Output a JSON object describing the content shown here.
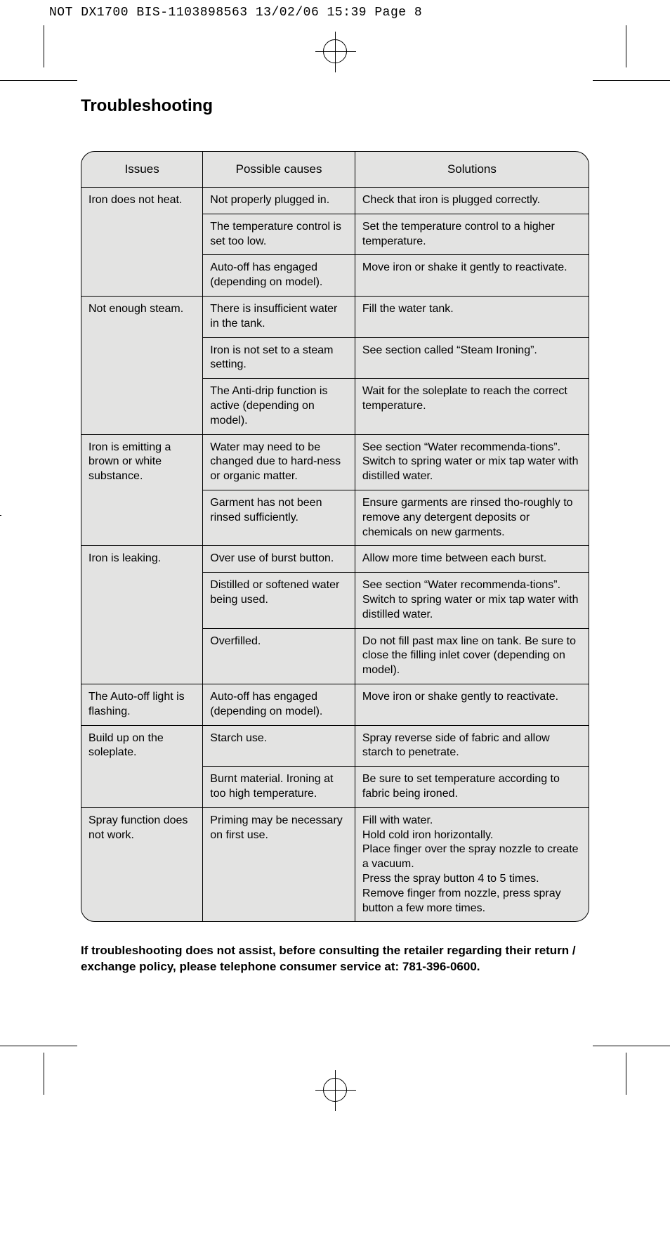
{
  "header_line": "NOT DX1700 BIS-1103898563  13/02/06  15:39  Page 8",
  "page_title": "Troubleshooting",
  "table": {
    "headers": [
      "Issues",
      "Possible causes",
      "Solutions"
    ],
    "rows": [
      {
        "issue": "Iron does not heat.",
        "issue_rowspan": 3,
        "cause": "Not properly plugged in.",
        "solution": "Check that iron is plugged correctly."
      },
      {
        "cause": "The temperature control is set too low.",
        "solution": "Set the temperature control to a higher temperature."
      },
      {
        "cause": "Auto-off has engaged (depending on model).",
        "solution": "Move iron or shake it gently to reactivate."
      },
      {
        "issue": "Not enough steam.",
        "issue_rowspan": 3,
        "cause": "There is insufficient water in the tank.",
        "solution": "Fill the water tank."
      },
      {
        "cause": "Iron is not set to a steam setting.",
        "solution": "See section called “Steam Ironing”."
      },
      {
        "cause": "The Anti-drip function is active (depending on model).",
        "cause_small": true,
        "solution": "Wait for the soleplate to reach the correct temperature."
      },
      {
        "issue": "Iron is emitting a brown or white substance.",
        "issue_rowspan": 2,
        "cause": "Water may need to be changed due to hard-ness or organic matter.",
        "solution": "See section “Water recommenda-tions”. Switch to spring water or mix tap water with distilled water."
      },
      {
        "cause": "Garment has not been rinsed sufficiently.",
        "solution": "Ensure garments are rinsed tho-roughly to remove any detergent deposits or chemicals on new garments."
      },
      {
        "issue": "Iron is leaking.",
        "issue_rowspan": 3,
        "cause": "Over use of burst button.",
        "solution": "Allow more time between each burst."
      },
      {
        "cause": "Distilled or softened water being used.",
        "solution": "See section “Water recommenda-tions”. Switch to spring water or mix tap water with distilled water."
      },
      {
        "cause": "Overfilled.",
        "solution": "Do not fill past max line on tank. Be sure to close the filling inlet cover (depending on model)."
      },
      {
        "issue": "The Auto-off light is flashing.",
        "issue_rowspan": 1,
        "cause": "Auto-off has engaged (depending on model).",
        "solution": "Move iron or shake gently to reactivate."
      },
      {
        "issue": "Build up on the soleplate.",
        "issue_rowspan": 2,
        "cause": "Starch use.",
        "solution": "Spray reverse side of fabric and allow starch to penetrate."
      },
      {
        "cause": "Burnt material. Ironing at too high temperature.",
        "solution": "Be sure to set temperature according to fabric being ironed."
      },
      {
        "issue": "Spray function does not work.",
        "issue_rowspan": 1,
        "cause": "Priming may be necessary on first use.",
        "solution": "Fill with water.\nHold cold iron horizontally.\nPlace finger over the spray nozzle to create a vacuum.\nPress the spray button 4 to 5 times.\nRemove finger from nozzle, press spray button a few more times."
      }
    ]
  },
  "footer_note": "If troubleshooting does not assist, before consulting the retailer regarding their return / exchange policy, please telephone consumer service at: 781-396-0600."
}
